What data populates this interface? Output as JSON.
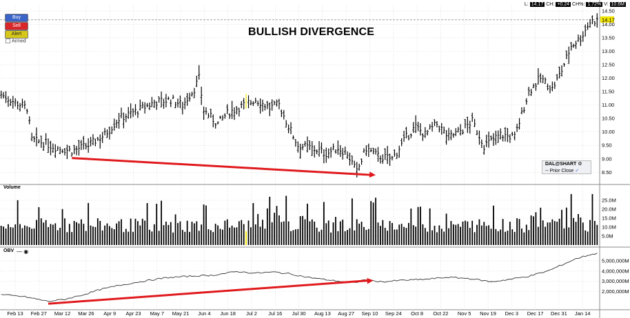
{
  "buttons": {
    "buy": "Buy",
    "sell": "Sell",
    "alert": "Alert",
    "armed": "Armed"
  },
  "annotation_title": "BULLISH DIVERGENCE",
  "quote": {
    "last_label": "L:",
    "last": "14.17",
    "change_label": "CH:",
    "change": "+0.24",
    "change_pct_label": "CH%:",
    "change_pct": "1.72%",
    "volume_label": "V:",
    "volume": "10.6M"
  },
  "legend": {
    "symbol": "DAL@SHART",
    "symbol_icon": "settings-icon",
    "prior_close": "Prior Close",
    "check_icon": "check-icon"
  },
  "panels": {
    "volume_label": "Volume",
    "obv_label": "OBV"
  },
  "colors": {
    "up_bar": "#000000",
    "highlight_bar": "#f2e600",
    "arrow": "#e0191c",
    "grid": "#cfcfcf",
    "price_marker": "#f2e600"
  },
  "chart_data": [
    {
      "type": "ohlc",
      "panel": "price",
      "ylim": [
        8.2,
        14.6
      ],
      "yticks": [
        "8.50",
        "9.00",
        "9.50",
        "10.00",
        "10.50",
        "11.00",
        "11.50",
        "12.00",
        "12.50",
        "13.00",
        "13.50",
        "14.00",
        "14.50"
      ],
      "ytick_values": [
        8.5,
        9.0,
        9.5,
        10.0,
        10.5,
        11.0,
        11.5,
        12.0,
        12.5,
        13.0,
        13.5,
        14.0,
        14.5
      ],
      "last_price_marker": "14.17",
      "x_labels": [
        "Feb 13",
        "Feb 27",
        "Mar 12",
        "Mar 26",
        "Apr 9",
        "Apr 23",
        "May 7",
        "May 21",
        "Jun 4",
        "Jun 18",
        "Jul 2",
        "Jul 16",
        "Jul 30",
        "Aug 13",
        "Aug 27",
        "Sep 10",
        "Sep 24",
        "Oct 8",
        "Oct 22",
        "Nov 5",
        "Nov 19",
        "Dec 3",
        "Dec 17",
        "Dec 31",
        "Jan 14"
      ],
      "close_anchors": [
        [
          0,
          11.4
        ],
        [
          6,
          11.1
        ],
        [
          11,
          10.9
        ],
        [
          13,
          9.7
        ],
        [
          18,
          9.6
        ],
        [
          24,
          9.4
        ],
        [
          30,
          9.3
        ],
        [
          37,
          9.5
        ],
        [
          44,
          9.9
        ],
        [
          50,
          10.5
        ],
        [
          58,
          10.8
        ],
        [
          65,
          11.1
        ],
        [
          72,
          11.2
        ],
        [
          77,
          11.0
        ],
        [
          82,
          11.6
        ],
        [
          84,
          12.0
        ],
        [
          86,
          10.8
        ],
        [
          92,
          10.3
        ],
        [
          96,
          10.7
        ],
        [
          103,
          11.0
        ],
        [
          108,
          11.2
        ],
        [
          114,
          10.9
        ],
        [
          118,
          11.0
        ],
        [
          121,
          10.4
        ],
        [
          126,
          9.5
        ],
        [
          132,
          9.4
        ],
        [
          138,
          9.2
        ],
        [
          143,
          9.4
        ],
        [
          147,
          9.2
        ],
        [
          151,
          8.5
        ],
        [
          155,
          9.4
        ],
        [
          160,
          9.1
        ],
        [
          166,
          9.0
        ],
        [
          172,
          9.8
        ],
        [
          176,
          10.2
        ],
        [
          180,
          9.9
        ],
        [
          185,
          10.3
        ],
        [
          190,
          9.8
        ],
        [
          196,
          10.1
        ],
        [
          200,
          10.4
        ],
        [
          205,
          9.5
        ],
        [
          212,
          9.9
        ],
        [
          218,
          9.8
        ],
        [
          224,
          11.5
        ],
        [
          229,
          12.0
        ],
        [
          234,
          11.6
        ],
        [
          238,
          12.3
        ],
        [
          242,
          13.2
        ],
        [
          246,
          13.5
        ],
        [
          250,
          14.1
        ],
        [
          253,
          14.17
        ]
      ],
      "volume_ylim": [
        0,
        30
      ],
      "volume_yticks": [
        "5.0M",
        "10.0M",
        "15.0M",
        "20.0M",
        "25.0M"
      ],
      "volume_ytick_values": [
        5,
        10,
        15,
        20,
        25
      ],
      "highlight_bar_index": 104
    },
    {
      "type": "line",
      "panel": "obv",
      "ylim": [
        500,
        6000
      ],
      "yticks": [
        "2,000,000M",
        "3,000,000M",
        "4,000,000M",
        "5,000,000M"
      ],
      "ytick_values": [
        2000,
        3000,
        4000,
        5000
      ],
      "anchors": [
        [
          0,
          1700
        ],
        [
          10,
          1500
        ],
        [
          20,
          1050
        ],
        [
          27,
          1250
        ],
        [
          35,
          1700
        ],
        [
          42,
          2200
        ],
        [
          50,
          2600
        ],
        [
          60,
          3000
        ],
        [
          70,
          3350
        ],
        [
          80,
          3500
        ],
        [
          90,
          3600
        ],
        [
          100,
          3950
        ],
        [
          108,
          3800
        ],
        [
          116,
          3900
        ],
        [
          122,
          3750
        ],
        [
          130,
          3400
        ],
        [
          140,
          3100
        ],
        [
          150,
          2850
        ],
        [
          154,
          3150
        ],
        [
          162,
          2950
        ],
        [
          170,
          3100
        ],
        [
          180,
          3200
        ],
        [
          190,
          3400
        ],
        [
          200,
          3250
        ],
        [
          208,
          2950
        ],
        [
          216,
          3200
        ],
        [
          224,
          3500
        ],
        [
          232,
          4000
        ],
        [
          238,
          4600
        ],
        [
          244,
          5200
        ],
        [
          250,
          5600
        ],
        [
          253,
          5700
        ]
      ]
    }
  ],
  "annotations": [
    {
      "panel": "price",
      "from": [
        30,
        9.03
      ],
      "to": [
        159,
        8.4
      ],
      "label": ""
    },
    {
      "panel": "obv",
      "from": [
        20,
        820
      ],
      "to": [
        158,
        3080
      ],
      "label": ""
    }
  ]
}
